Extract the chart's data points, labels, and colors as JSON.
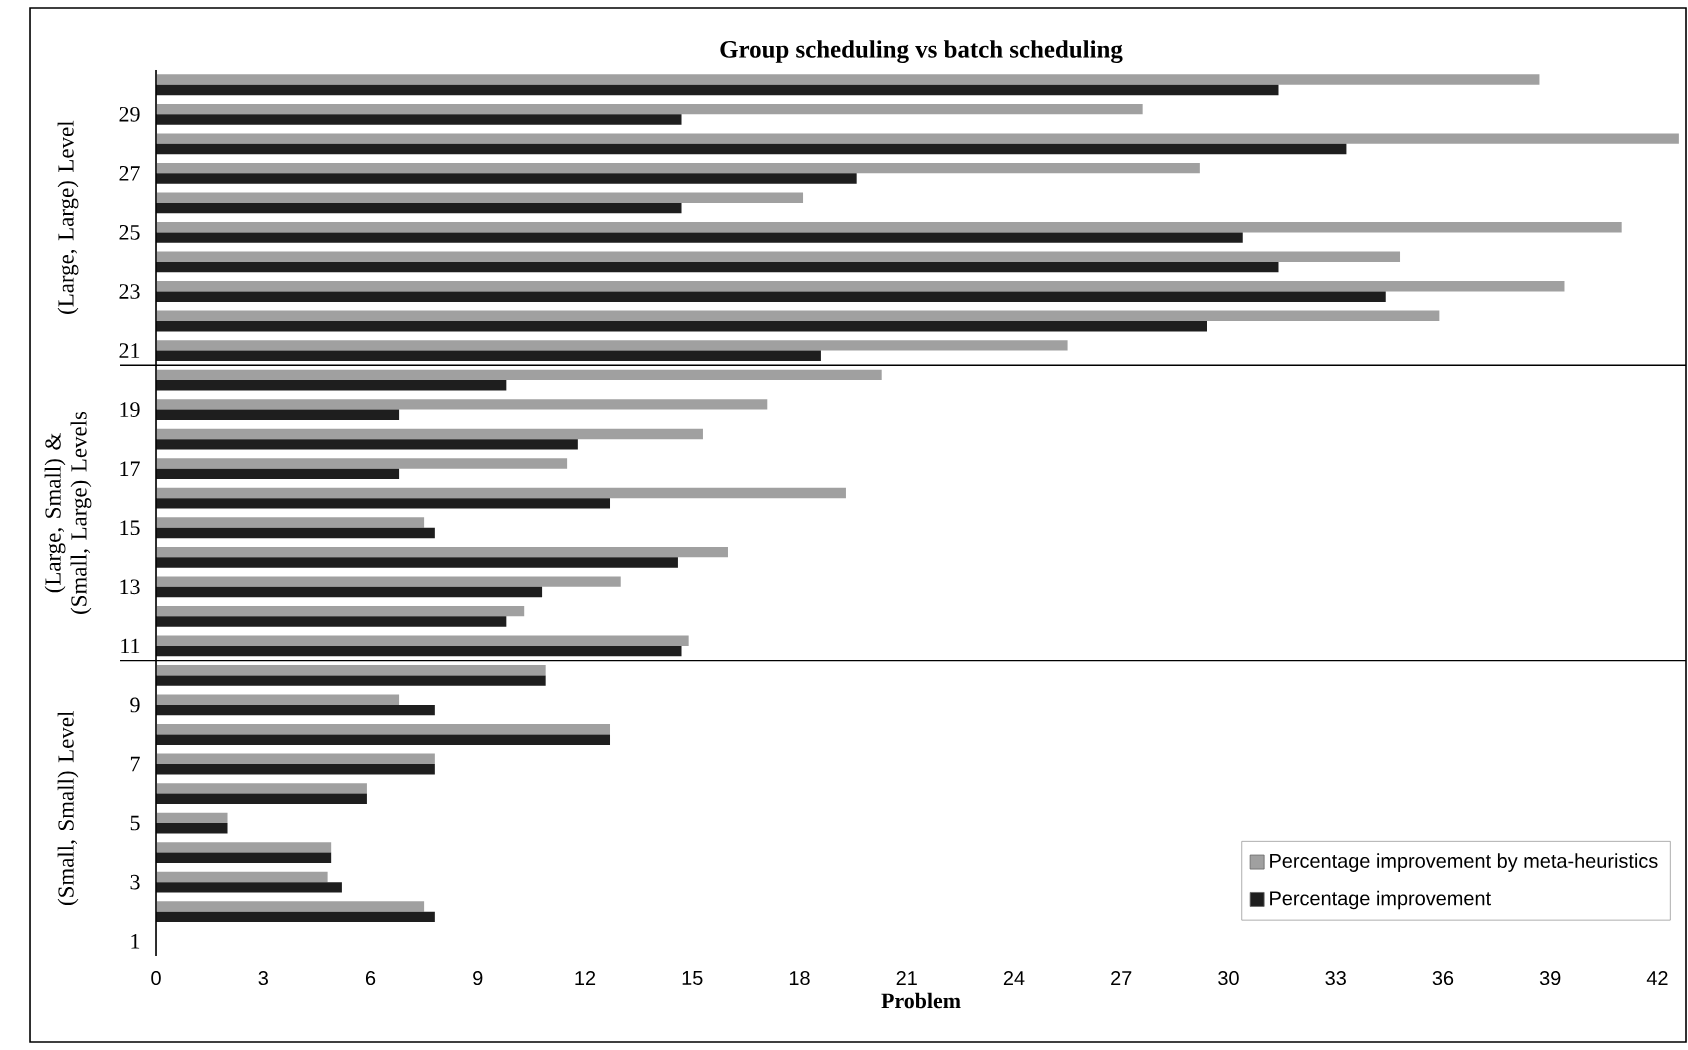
{
  "chart_data": {
    "type": "bar",
    "orientation": "horizontal",
    "title": "Group scheduling vs batch scheduling",
    "xlabel": "Problem",
    "categories": [
      null,
      "29",
      null,
      "27",
      null,
      "25",
      null,
      "23",
      null,
      "21",
      null,
      "19",
      null,
      "17",
      null,
      "15",
      null,
      "13",
      null,
      "11",
      null,
      "9",
      null,
      "7",
      null,
      "5",
      null,
      "3",
      null,
      "1"
    ],
    "series": [
      {
        "name": "Percentage improvement by meta-heuristics",
        "color": "#a0a0a0",
        "values": [
          38.7,
          27.6,
          42.6,
          29.2,
          18.1,
          41.0,
          34.8,
          39.4,
          35.9,
          25.5,
          20.3,
          17.1,
          15.3,
          11.5,
          19.3,
          7.5,
          16.0,
          13.0,
          10.3,
          14.9,
          10.9,
          6.8,
          12.7,
          7.8,
          5.9,
          2.0,
          4.9,
          4.8,
          7.5,
          null
        ]
      },
      {
        "name": "Percentage improvement",
        "color": "#1e1e1e",
        "values": [
          31.4,
          14.7,
          33.3,
          19.6,
          14.7,
          30.4,
          31.4,
          34.4,
          29.4,
          18.6,
          9.8,
          6.8,
          11.8,
          6.8,
          12.7,
          7.8,
          14.6,
          10.8,
          9.8,
          14.7,
          10.9,
          7.8,
          12.7,
          7.8,
          5.9,
          2.0,
          4.9,
          5.2,
          7.8,
          null
        ]
      }
    ],
    "xlim": [
      0,
      42.8
    ],
    "xticks": [
      0,
      3,
      6,
      9,
      12,
      15,
      18,
      21,
      24,
      27,
      30,
      33,
      36,
      39,
      42
    ],
    "annotations": [
      "(Large, Large) Level",
      "(Large, Small) & (Small, Large) Levels",
      "(Small, Small) Level"
    ],
    "legend": "bottom right",
    "grid": false
  }
}
